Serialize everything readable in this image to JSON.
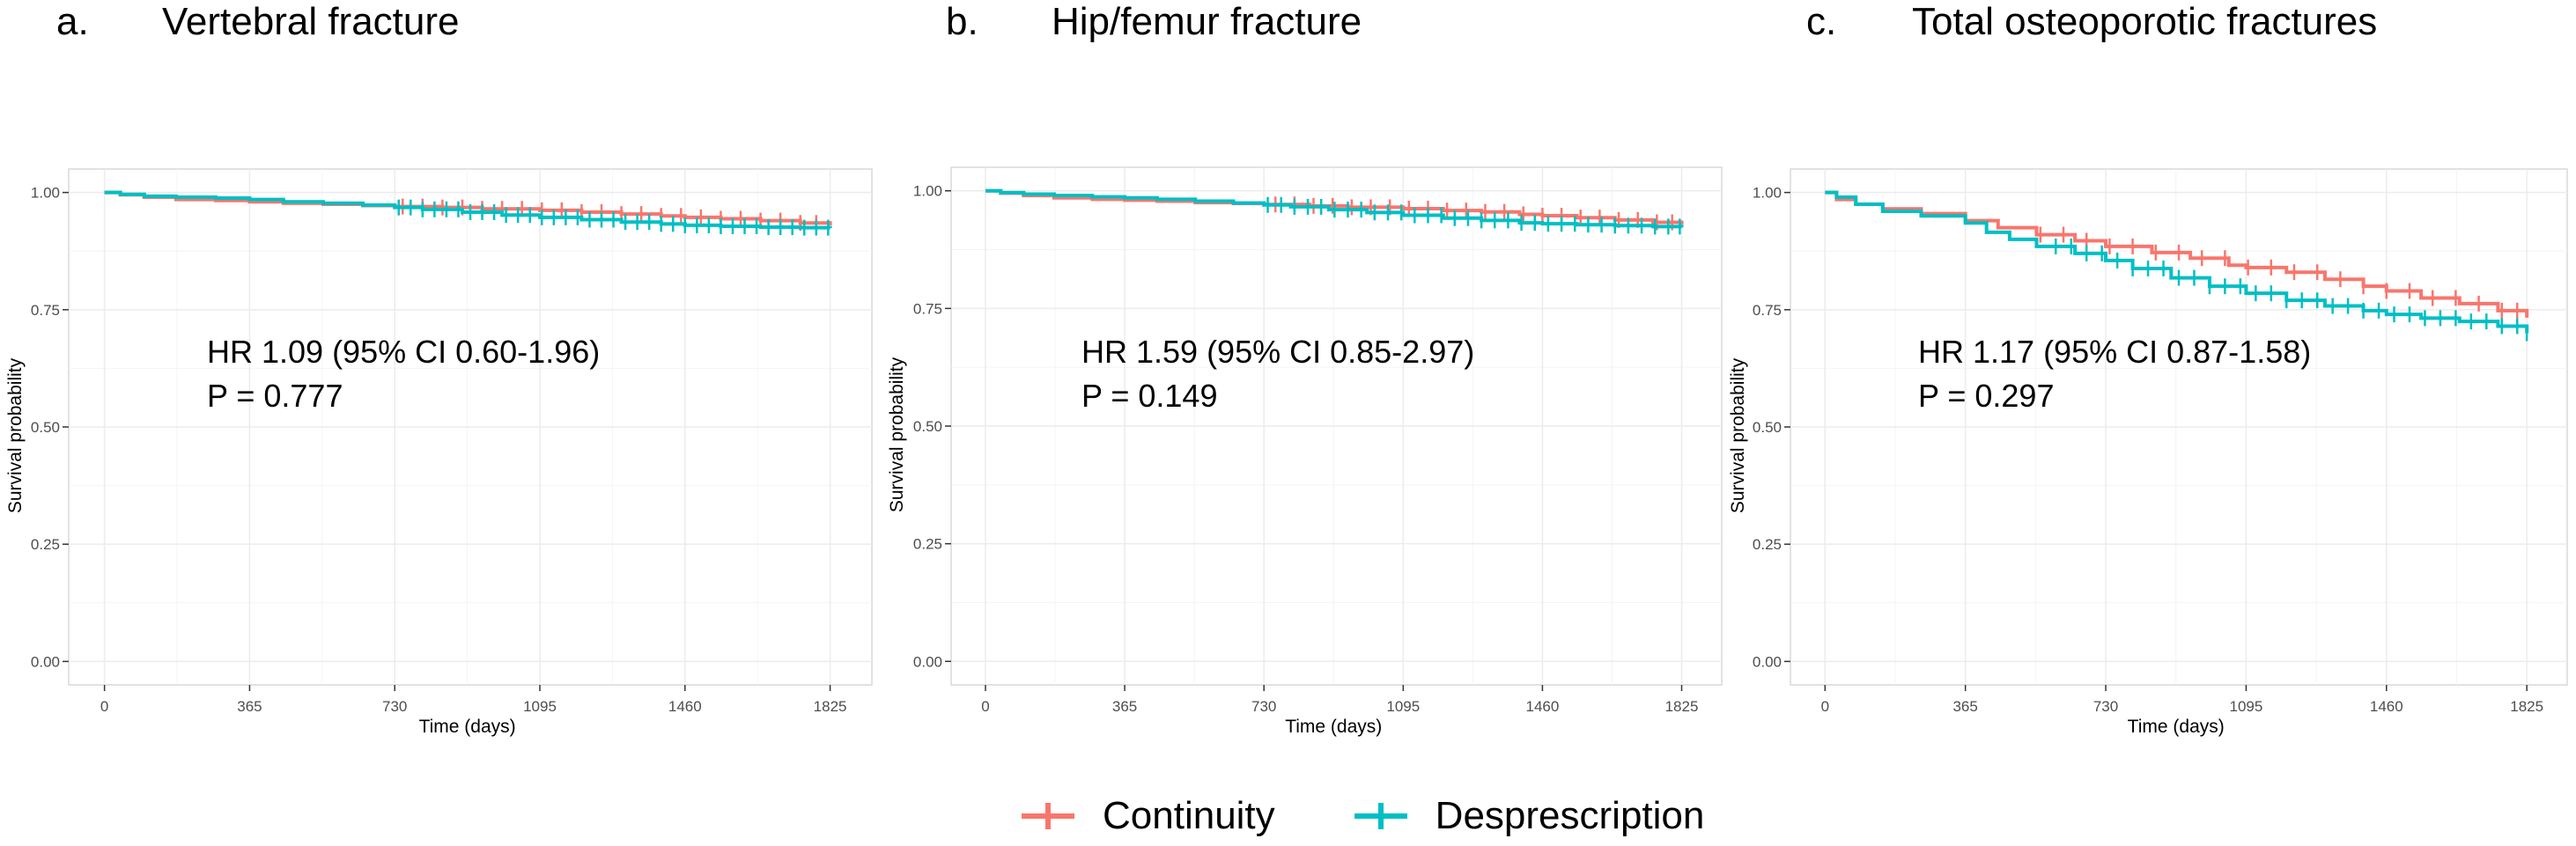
{
  "panels": [
    {
      "letter": "a.",
      "title": "Vertebral fracture",
      "hr_text": "HR 1.09 (95% CI 0.60-1.96)",
      "p_text": "P = 0.777"
    },
    {
      "letter": "b.",
      "title": "Hip/femur fracture",
      "hr_text": "HR 1.59 (95% CI 0.85-2.97)",
      "p_text": "P = 0.149"
    },
    {
      "letter": "c.",
      "title": "Total osteoporotic fractures",
      "hr_text": "HR 1.17 (95% CI 0.87-1.58)",
      "p_text": "P = 0.297"
    }
  ],
  "legend": {
    "items": [
      {
        "label": "Continuity",
        "color": "#F8766D"
      },
      {
        "label": "Desprescription",
        "color": "#00BFC4"
      }
    ]
  },
  "colors": {
    "continuity": "#F8766D",
    "desprescription": "#00BFC4",
    "grid": "#EBEBEB",
    "axis_text": "#4D4D4D"
  },
  "chart_data": [
    {
      "type": "line",
      "title": "Vertebral fracture",
      "xlabel": "Time (days)",
      "ylabel": "Survival probability",
      "xticks": [
        0,
        365,
        730,
        1095,
        1460,
        1825
      ],
      "yticks": [
        "0.00",
        "0.25",
        "0.50",
        "0.75",
        "1.00"
      ],
      "xlim": [
        -90,
        1930
      ],
      "ylim": [
        -0.05,
        1.05
      ],
      "grid": true,
      "annotations": [
        "HR 1.09 (95% CI 0.60-1.96)",
        "P = 0.777"
      ],
      "series": [
        {
          "name": "Continuity",
          "color": "#F8766D",
          "x": [
            0,
            40,
            100,
            180,
            280,
            365,
            450,
            550,
            650,
            730,
            850,
            950,
            1095,
            1200,
            1300,
            1400,
            1460,
            1550,
            1650,
            1750,
            1825
          ],
          "y": [
            1.0,
            0.995,
            0.99,
            0.985,
            0.983,
            0.98,
            0.977,
            0.975,
            0.972,
            0.97,
            0.968,
            0.965,
            0.962,
            0.958,
            0.954,
            0.95,
            0.947,
            0.944,
            0.94,
            0.935,
            0.93
          ],
          "censor_x": [
            750,
            800,
            850,
            900,
            950,
            1000,
            1050,
            1100,
            1150,
            1200,
            1250,
            1300,
            1350,
            1400,
            1450,
            1500,
            1550,
            1600,
            1650,
            1700,
            1750,
            1790
          ]
        },
        {
          "name": "Desprescription",
          "color": "#00BFC4",
          "x": [
            0,
            40,
            100,
            180,
            280,
            365,
            450,
            550,
            650,
            730,
            800,
            900,
            1000,
            1095,
            1200,
            1300,
            1400,
            1460,
            1550,
            1650,
            1750,
            1825
          ],
          "y": [
            1.0,
            0.996,
            0.992,
            0.99,
            0.988,
            0.985,
            0.98,
            0.977,
            0.973,
            0.968,
            0.964,
            0.958,
            0.952,
            0.947,
            0.942,
            0.937,
            0.933,
            0.93,
            0.928,
            0.926,
            0.925,
            0.924
          ],
          "censor_x": [
            740,
            770,
            800,
            830,
            860,
            890,
            920,
            950,
            980,
            1010,
            1040,
            1070,
            1100,
            1130,
            1160,
            1190,
            1220,
            1250,
            1280,
            1310,
            1340,
            1370,
            1400,
            1430,
            1460,
            1490,
            1520,
            1550,
            1580,
            1610,
            1640,
            1670,
            1700,
            1730,
            1760,
            1790,
            1820
          ]
        }
      ]
    },
    {
      "type": "line",
      "title": "Hip/femur fracture",
      "xlabel": "Time (days)",
      "ylabel": "Survival probability",
      "xticks": [
        0,
        365,
        730,
        1095,
        1460,
        1825
      ],
      "yticks": [
        "0.00",
        "0.25",
        "0.50",
        "0.75",
        "1.00"
      ],
      "xlim": [
        -90,
        1930
      ],
      "ylim": [
        -0.05,
        1.05
      ],
      "grid": true,
      "annotations": [
        "HR 1.59 (95% CI 0.85-2.97)",
        "P = 0.149"
      ],
      "series": [
        {
          "name": "Continuity",
          "color": "#F8766D",
          "x": [
            0,
            40,
            100,
            180,
            280,
            365,
            450,
            550,
            650,
            730,
            850,
            950,
            1095,
            1200,
            1300,
            1400,
            1460,
            1550,
            1650,
            1750,
            1825
          ],
          "y": [
            1.0,
            0.995,
            0.99,
            0.985,
            0.982,
            0.98,
            0.978,
            0.975,
            0.973,
            0.971,
            0.968,
            0.965,
            0.962,
            0.958,
            0.955,
            0.95,
            0.947,
            0.943,
            0.938,
            0.933,
            0.928
          ],
          "censor_x": [
            760,
            810,
            860,
            910,
            960,
            1010,
            1060,
            1110,
            1160,
            1210,
            1260,
            1310,
            1360,
            1410,
            1460,
            1510,
            1560,
            1610,
            1660,
            1710,
            1760,
            1800
          ]
        },
        {
          "name": "Desprescription",
          "color": "#00BFC4",
          "x": [
            0,
            40,
            100,
            180,
            280,
            365,
            450,
            550,
            650,
            730,
            800,
            900,
            1000,
            1095,
            1200,
            1300,
            1400,
            1460,
            1550,
            1650,
            1750,
            1825
          ],
          "y": [
            1.0,
            0.996,
            0.993,
            0.99,
            0.987,
            0.985,
            0.982,
            0.978,
            0.974,
            0.97,
            0.966,
            0.96,
            0.954,
            0.948,
            0.942,
            0.937,
            0.932,
            0.93,
            0.928,
            0.926,
            0.924,
            0.922
          ],
          "censor_x": [
            740,
            775,
            810,
            845,
            880,
            915,
            950,
            985,
            1020,
            1055,
            1090,
            1125,
            1160,
            1195,
            1230,
            1265,
            1300,
            1335,
            1370,
            1405,
            1440,
            1475,
            1510,
            1545,
            1580,
            1615,
            1650,
            1685,
            1720,
            1755,
            1790,
            1820
          ]
        }
      ]
    },
    {
      "type": "line",
      "title": "Total osteoporotic fractures",
      "xlabel": "Time (days)",
      "ylabel": "Survival probability",
      "xticks": [
        0,
        365,
        730,
        1095,
        1460,
        1825
      ],
      "yticks": [
        "0.00",
        "0.25",
        "0.50",
        "0.75",
        "1.00"
      ],
      "xlim": [
        -90,
        1930
      ],
      "ylim": [
        -0.05,
        1.05
      ],
      "grid": true,
      "annotations": [
        "HR 1.17 (95% CI 0.87-1.58)",
        "P = 0.297"
      ],
      "series": [
        {
          "name": "Continuity",
          "color": "#F8766D",
          "x": [
            0,
            30,
            80,
            150,
            250,
            365,
            450,
            550,
            650,
            730,
            850,
            950,
            1050,
            1095,
            1200,
            1300,
            1400,
            1460,
            1550,
            1650,
            1750,
            1825
          ],
          "y": [
            1.0,
            0.985,
            0.975,
            0.965,
            0.955,
            0.94,
            0.925,
            0.91,
            0.897,
            0.885,
            0.872,
            0.86,
            0.845,
            0.84,
            0.83,
            0.815,
            0.8,
            0.79,
            0.775,
            0.763,
            0.748,
            0.733
          ],
          "censor_x": [
            560,
            620,
            680,
            740,
            800,
            860,
            920,
            980,
            1040,
            1100,
            1160,
            1220,
            1280,
            1340,
            1400,
            1460,
            1520,
            1580,
            1640,
            1700,
            1760,
            1800
          ]
        },
        {
          "name": "Desprescription",
          "color": "#00BFC4",
          "x": [
            0,
            30,
            80,
            150,
            250,
            365,
            420,
            480,
            550,
            650,
            730,
            800,
            900,
            1000,
            1095,
            1200,
            1300,
            1400,
            1460,
            1550,
            1650,
            1750,
            1825
          ],
          "y": [
            1.0,
            0.99,
            0.975,
            0.96,
            0.95,
            0.935,
            0.915,
            0.9,
            0.885,
            0.87,
            0.855,
            0.838,
            0.818,
            0.8,
            0.785,
            0.77,
            0.758,
            0.748,
            0.74,
            0.732,
            0.725,
            0.715,
            0.7
          ],
          "censor_x": [
            600,
            640,
            680,
            720,
            760,
            800,
            840,
            880,
            920,
            960,
            1000,
            1040,
            1080,
            1120,
            1160,
            1200,
            1240,
            1280,
            1320,
            1360,
            1400,
            1440,
            1480,
            1520,
            1560,
            1600,
            1640,
            1680,
            1720,
            1760,
            1800,
            1825
          ]
        }
      ]
    }
  ]
}
